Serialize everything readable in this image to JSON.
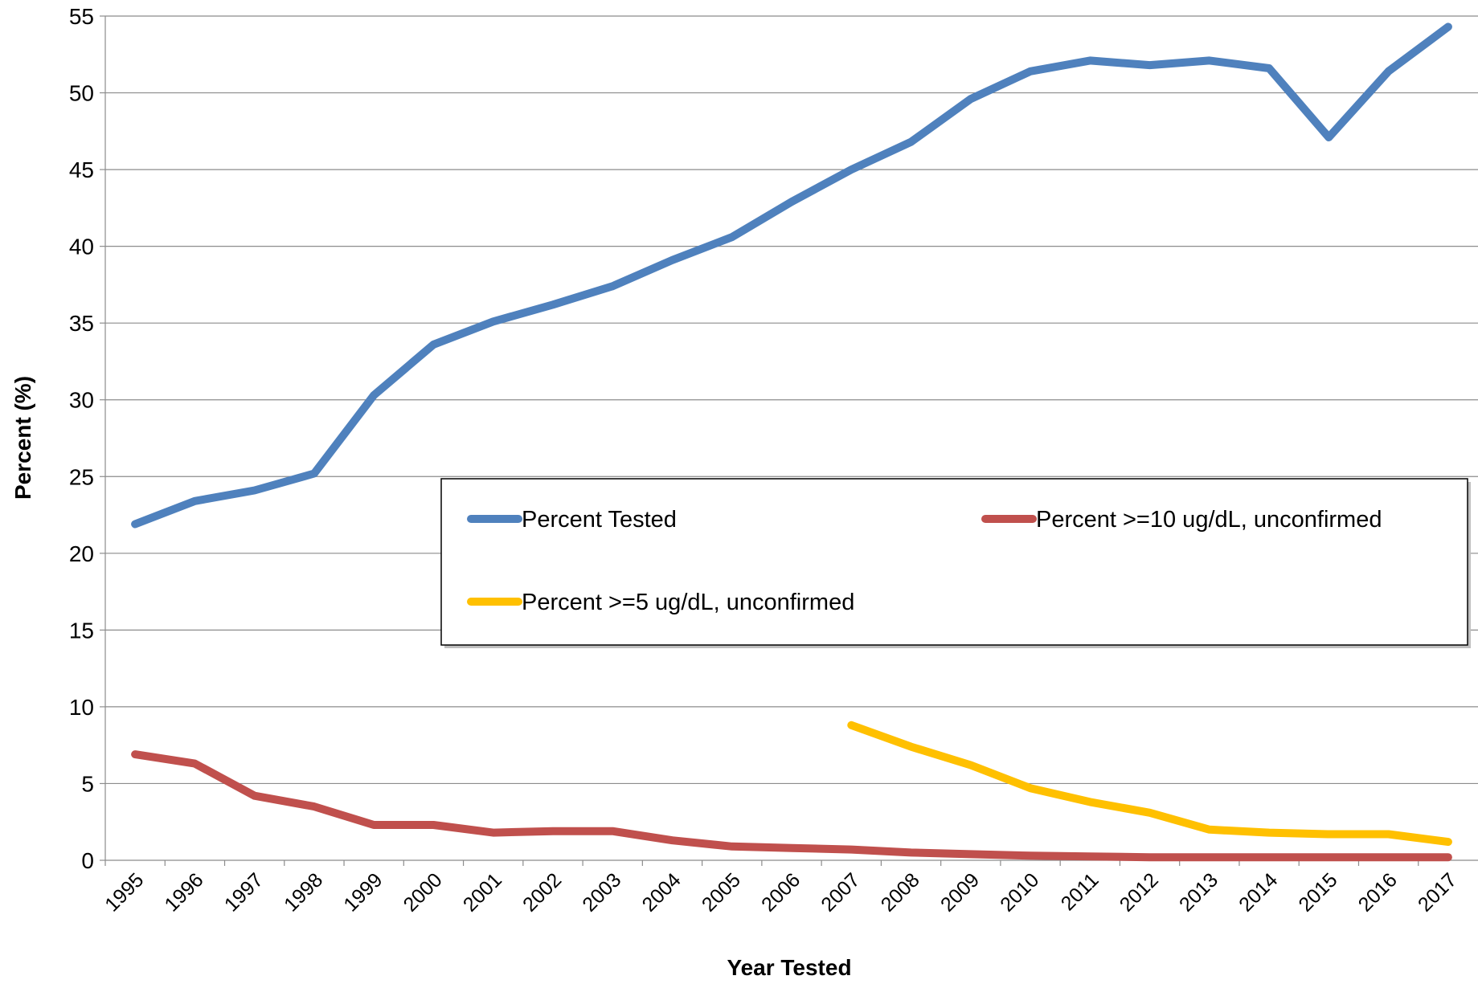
{
  "chart_data": {
    "type": "line",
    "x_label": "Year Tested",
    "y_label": "Percent (%)",
    "categories": [
      "1995",
      "1996",
      "1997",
      "1998",
      "1999",
      "2000",
      "2001",
      "2002",
      "2003",
      "2004",
      "2005",
      "2006",
      "2007",
      "2008",
      "2009",
      "2010",
      "2011",
      "2012",
      "2013",
      "2014",
      "2015",
      "2016",
      "2017"
    ],
    "series": [
      {
        "name": "Percent Tested",
        "color": "#4f81bd",
        "values": [
          21.9,
          23.4,
          24.1,
          25.2,
          30.3,
          33.6,
          35.1,
          36.2,
          37.4,
          39.1,
          40.6,
          42.9,
          45.0,
          46.8,
          49.6,
          51.4,
          52.1,
          51.8,
          52.1,
          51.6,
          47.1,
          51.4,
          54.3
        ]
      },
      {
        "name": "Percent >=10 ug/dL, unconfirmed",
        "color": "#c0504d",
        "values": [
          6.9,
          6.3,
          4.2,
          3.5,
          2.3,
          2.3,
          1.8,
          1.9,
          1.9,
          1.3,
          0.9,
          0.8,
          0.7,
          0.5,
          0.4,
          0.3,
          0.25,
          0.2,
          0.2,
          0.2,
          0.2,
          0.2,
          0.2
        ]
      },
      {
        "name": "Percent >=5 ug/dL, unconfirmed",
        "color": "#ffc000",
        "values": [
          null,
          null,
          null,
          null,
          null,
          null,
          null,
          null,
          null,
          null,
          null,
          null,
          8.8,
          7.4,
          6.2,
          4.7,
          3.8,
          3.1,
          2.0,
          1.8,
          1.7,
          1.7,
          1.2
        ]
      }
    ],
    "ylim": [
      0,
      55
    ],
    "yticks": [
      0,
      5,
      10,
      15,
      20,
      25,
      30,
      35,
      40,
      45,
      50,
      55
    ],
    "grid": true
  }
}
